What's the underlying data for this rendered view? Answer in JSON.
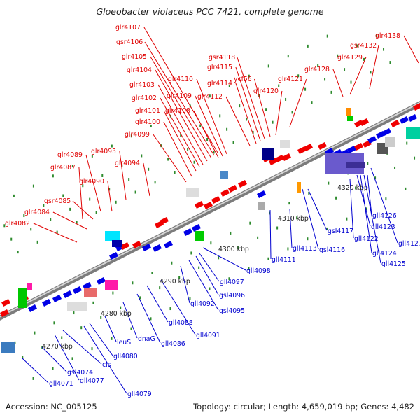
{
  "title": "Gloeobacter violaceus PCC 7421, complete genome",
  "footer": {
    "accession": "Accession: NC_005125",
    "topology": "Topology: circular; Length: 4,659,019 bp; Genes: 4,482"
  },
  "colors": {
    "forward_label": "#e00000",
    "reverse_label": "#0000d0",
    "backbone": "#999999",
    "tick": "#2e8b2e"
  },
  "scale_labels": [
    "4270 kbp",
    "4280 kbp",
    "4290 kbp",
    "4300 kbp",
    "4310 kbp",
    "4320 kbp"
  ],
  "forward_labels": [
    "glr4082",
    "glr4084",
    "gsr4085",
    "glr4087",
    "glr4089",
    "glr4090",
    "glr4093",
    "glr4094",
    "glr4099",
    "glr4100",
    "glr4101",
    "glr4102",
    "glr4103",
    "glr4104",
    "glr4105",
    "gsr4106",
    "glr4107",
    "glr4108",
    "glr4109",
    "glr4110",
    "glr4112",
    "glr4114",
    "glr4115",
    "gsr4118",
    "ycf56",
    "glr4120",
    "glr4121",
    "glr4128",
    "glr4129",
    "gsr4132",
    "glr4138"
  ],
  "reverse_labels": [
    "gll4071",
    "gsl4074",
    "gll4077",
    "cls",
    "gll4079",
    "gll4080",
    "leuS",
    "dnaG",
    "gll4086",
    "gll4088",
    "gll4091",
    "gll4092",
    "gsl4095",
    "gsl4096",
    "gll4097",
    "gll4098",
    "gll4111",
    "gll4113",
    "gsl4116",
    "gsl4117",
    "gll4122",
    "gll4123",
    "gll4124",
    "gll4125",
    "gll4126",
    "gll4127"
  ]
}
